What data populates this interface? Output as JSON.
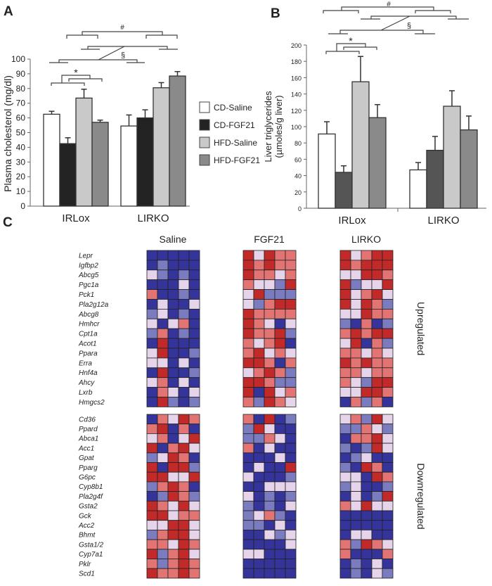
{
  "panels": {
    "a": "A",
    "b": "B",
    "c": "C"
  },
  "chart_data": [
    {
      "type": "bar",
      "ylabel": "Plasma cholesterol (mg/dl)",
      "ylim": [
        0,
        100
      ],
      "yticks": [
        0,
        10,
        20,
        30,
        40,
        50,
        60,
        70,
        80,
        90,
        100
      ],
      "categories": [
        "IRLox",
        "LIRKO"
      ],
      "series": [
        {
          "name": "CD-Saline",
          "color": "#ffffff",
          "values": [
            62.5,
            54.5
          ],
          "errors": [
            2,
            7.5
          ]
        },
        {
          "name": "CD-FGF21",
          "color": "#232323",
          "values": [
            42.5,
            60
          ],
          "errors": [
            4,
            5.5
          ]
        },
        {
          "name": "HFD-Saline",
          "color": "#c9c9c9",
          "values": [
            73.5,
            80.5
          ],
          "errors": [
            6,
            3.5
          ]
        },
        {
          "name": "HFD-FGF21",
          "color": "#8a8a8a",
          "values": [
            57,
            88.5
          ],
          "errors": [
            1.5,
            3
          ]
        }
      ],
      "significance": [
        "#",
        "§",
        "*"
      ],
      "legend": "right"
    },
    {
      "type": "bar",
      "ylabel": "Liver triglycerides (µmoles/g liver)",
      "ylim": [
        0,
        200
      ],
      "yticks": [
        0,
        20,
        40,
        60,
        80,
        100,
        120,
        140,
        160,
        180,
        200
      ],
      "categories": [
        "IRLox",
        "LIRKO"
      ],
      "series": [
        {
          "color": "#ffffff",
          "values": [
            91,
            47
          ],
          "errors": [
            15,
            9
          ]
        },
        {
          "color": "#555555",
          "values": [
            44,
            71
          ],
          "errors": [
            8,
            17
          ]
        },
        {
          "color": "#c9c9c9",
          "values": [
            155,
            125
          ],
          "errors": [
            31,
            19
          ]
        },
        {
          "color": "#8a8a8a",
          "values": [
            111,
            96
          ],
          "errors": [
            16,
            17
          ]
        }
      ],
      "significance": [
        "#",
        "§",
        "*"
      ]
    },
    {
      "type": "heatmap",
      "columns": [
        "Saline",
        "FGF21",
        "LIRKO"
      ],
      "groups": [
        {
          "label": "Upregulated",
          "genes": [
            "Lepr",
            "Igfbp2",
            "Abcg5",
            "Pgc1a",
            "Pck1",
            "Pla2g12a",
            "Abcg8",
            "Hmhcr",
            "Cpt1a",
            "Acot1",
            "Ppara",
            "Erra",
            "Hnf4a",
            "Ahcy",
            "Lxrb",
            "Hmgcs2"
          ],
          "data": {
            "Saline": [
              "BBBBB",
              "BbBBB",
              "wbBbB",
              "BBBwB",
              "rBBbB",
              "BwBBw",
              "bwBbB",
              "wBwrB",
              "brBbB",
              "BRBBB",
              "wRBBb",
              "wwBwB",
              "BRBBb",
              "wrBwB",
              "BrwBw",
              "BRbBb"
            ],
            "FGF21": [
              "RwRrr",
              "RrRrr",
              "Rrrwr",
              "rwwbR",
              "wRbbb",
              "wbrRR",
              "Rrrrr",
              "RrwBw",
              "RrrRb",
              "rwrRB",
              "rRwrw",
              "RRrBr",
              "wrRrb",
              "RRrbb",
              "RBRwr",
              "rbRrw"
            ],
            "LIRKO": [
              "RwrRR",
              "RrRRR",
              "wwRRr",
              "RbwwR",
              "RwrRw",
              "RwRrb",
              "wwRrr",
              "bBrBb",
              "rRrRR",
              "wRBrb",
              "rrwrw",
              "RrRrr",
              "rrwrr",
              "rwbRR",
              "wwRRr",
              "BrbrB"
            ]
          }
        },
        {
          "label": "Downregulated",
          "genes": [
            "Cd36",
            "Ppard",
            "Abca1",
            "Acc1",
            "Gpat",
            "Pparg",
            "G6pc",
            "Cyp8b1",
            "Pla2g4f",
            "Gsta2",
            "Gck",
            "Acc2",
            "Bhmt",
            "Gsta1/2",
            "Cyp7a1",
            "Pklr",
            "Scd1"
          ],
          "data": {
            "Saline": [
              "BrwRr",
              "rRBrB",
              "wrBwR",
              "RBrRw",
              "bwRrB",
              "RBRRb",
              "RRwwR",
              "brRrB",
              "BbRrb",
              "RrwRw",
              "RRwrr",
              "wwRRw",
              "brRRw",
              "rrwRr",
              "RbrRw",
              "rbrRr",
              "RrrRr"
            ],
            "FGF21": [
              "rBRBb",
              "bRwBB",
              "bbrwB",
              "rBwBB",
              "BBBwB",
              "BwBBR",
              "wBBBb",
              "BBwww",
              "wBbBb",
              "bBbBw",
              "bwrbB",
              "bbBwB",
              "BBwbw",
              "BBBBw",
              "wwBBB",
              "BBBBB",
              "BBBBB"
            ],
            "LIRKO": [
              "wrbRw",
              "bbrwb",
              "BrrRw",
              "bBbRw",
              "BbwBB",
              "bBRrB",
              "wwBRr",
              "bwBBb",
              "BwBbR",
              "rwRww",
              "BBBBB",
              "BBBBB",
              "BwwBB",
              "rbRrw",
              "rBBBr",
              "BbBwB",
              "BbBwb"
            ]
          }
        }
      ],
      "colors": {
        "B": "#34349a",
        "b": "#7b7bc0",
        "w": "#e6d4ea",
        "r": "#e27474",
        "R": "#c22a2a"
      }
    }
  ]
}
